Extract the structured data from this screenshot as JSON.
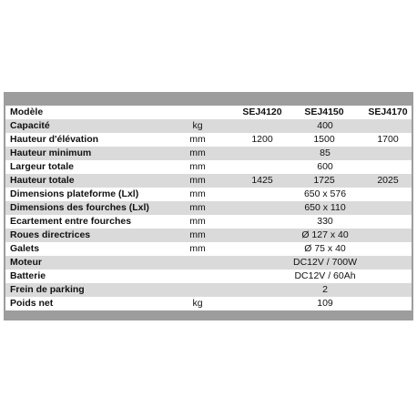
{
  "table": {
    "header": {
      "label": "Modèle",
      "models": [
        "SEJ4120",
        "SEJ4150",
        "SEJ4170"
      ]
    },
    "rows": [
      {
        "label": "Capacité",
        "unit": "kg",
        "values": [
          "400"
        ]
      },
      {
        "label": "Hauteur d'élévation",
        "unit": "mm",
        "values": [
          "1200",
          "1500",
          "1700"
        ]
      },
      {
        "label": "Hauteur minimum",
        "unit": "mm",
        "values": [
          "85"
        ]
      },
      {
        "label": "Largeur totale",
        "unit": "mm",
        "values": [
          "600"
        ]
      },
      {
        "label": "Hauteur totale",
        "unit": "mm",
        "values": [
          "1425",
          "1725",
          "2025"
        ]
      },
      {
        "label": "Dimensions plateforme (Lxl)",
        "unit": "mm",
        "values": [
          "650 x 576"
        ]
      },
      {
        "label": "Dimensions des fourches (Lxl)",
        "unit": "mm",
        "values": [
          "650 x 110"
        ]
      },
      {
        "label": "Ecartement entre fourches",
        "unit": "mm",
        "values": [
          "330"
        ]
      },
      {
        "label": "Roues directrices",
        "unit": "mm",
        "values": [
          "Ø 127 x 40"
        ]
      },
      {
        "label": "Galets",
        "unit": "mm",
        "values": [
          "Ø 75 x 40"
        ]
      },
      {
        "label": "Moteur",
        "values": [
          "DC12V / 700W"
        ]
      },
      {
        "label": "Batterie",
        "values": [
          "DC12V / 60Ah"
        ]
      },
      {
        "label": "Frein de parking",
        "values": [
          "2"
        ]
      },
      {
        "label": "Poids net",
        "unit": "kg",
        "values": [
          "109"
        ]
      }
    ]
  }
}
